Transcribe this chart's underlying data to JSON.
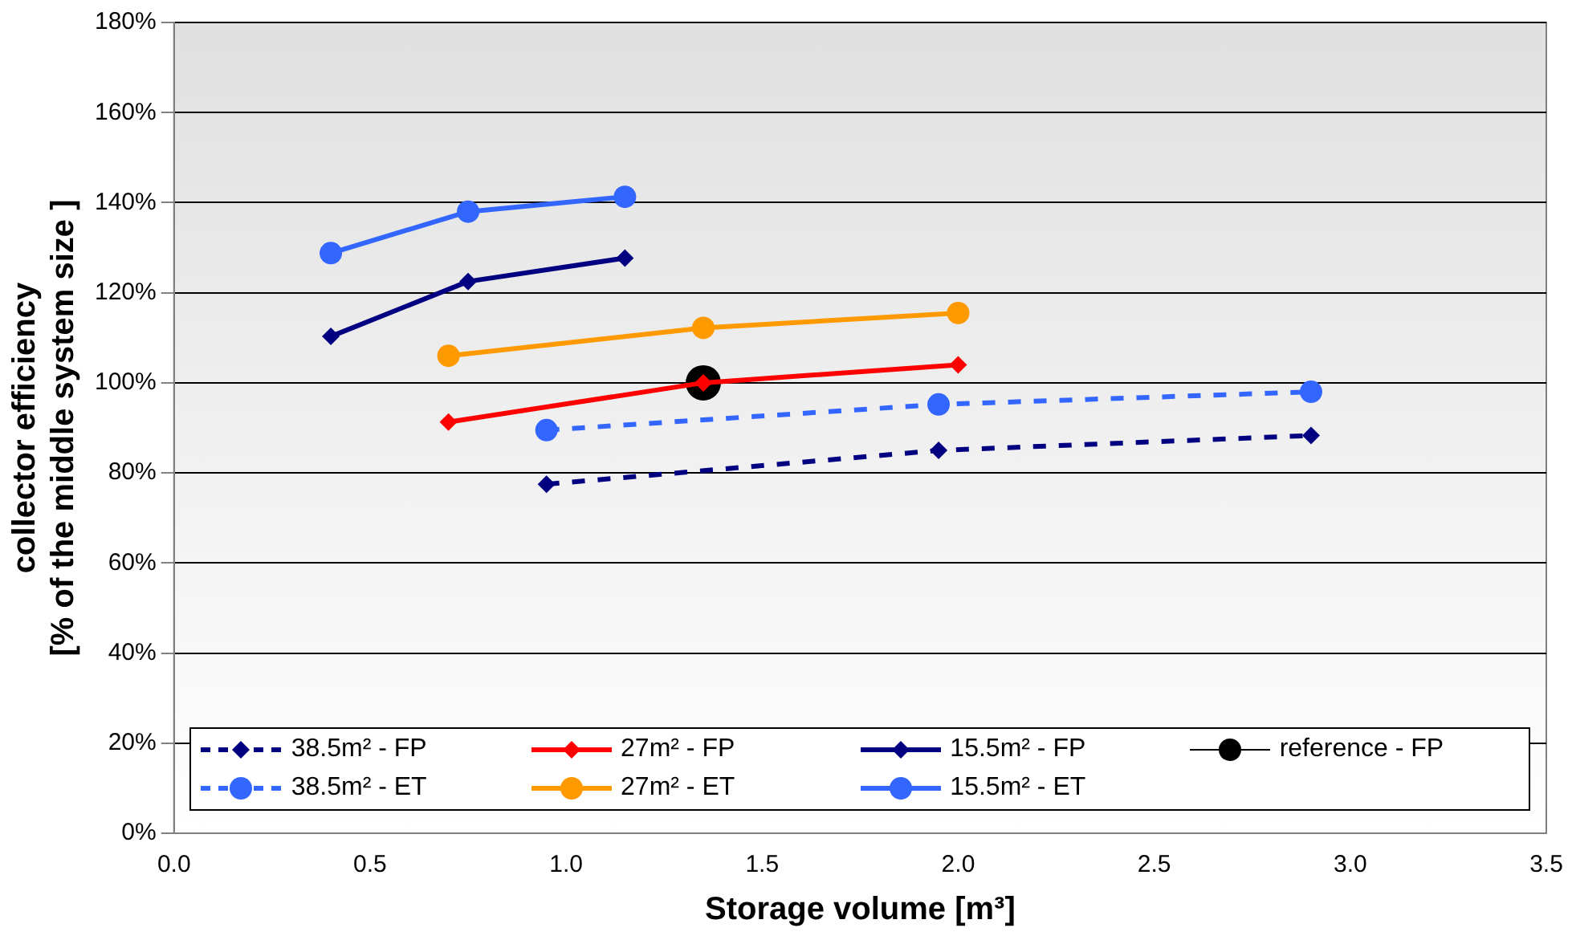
{
  "chart_data": {
    "type": "line",
    "xlabel": "Storage volume [m³]",
    "ylabel": "collector efficiency\n[% of the middle system size ]",
    "xlim": [
      0,
      3.5
    ],
    "xticks": [
      {
        "value": 0,
        "label": "0.0"
      },
      {
        "value": 0.5,
        "label": "0.5"
      },
      {
        "value": 1,
        "label": "1.0"
      },
      {
        "value": 1.5,
        "label": "1.5"
      },
      {
        "value": 2,
        "label": "2.0"
      },
      {
        "value": 2.5,
        "label": "2.5"
      },
      {
        "value": 3,
        "label": "3.0"
      },
      {
        "value": 3.5,
        "label": "3.5"
      }
    ],
    "ylim": [
      0,
      180
    ],
    "yticks": [
      {
        "value": 0,
        "label": "0%"
      },
      {
        "value": 20,
        "label": "20%"
      },
      {
        "value": 40,
        "label": "40%"
      },
      {
        "value": 60,
        "label": "60%"
      },
      {
        "value": 80,
        "label": "80%"
      },
      {
        "value": 100,
        "label": "100%"
      },
      {
        "value": 120,
        "label": "120%"
      },
      {
        "value": 140,
        "label": "140%"
      },
      {
        "value": 160,
        "label": "160%"
      },
      {
        "value": 180,
        "label": "180%"
      }
    ],
    "grid": "y",
    "legend": "bottom",
    "series": [
      {
        "name": "38.5m² - FP",
        "color": "#000080",
        "marker": "diamond",
        "line_style": "dashed",
        "x": [
          0.95,
          1.95,
          2.9
        ],
        "values": [
          77.5,
          85,
          88.3
        ]
      },
      {
        "name": "27m² - FP",
        "color": "#ff0000",
        "marker": "diamond",
        "line_style": "solid",
        "x": [
          0.7,
          1.35,
          2.0
        ],
        "values": [
          91.3,
          100,
          104
        ]
      },
      {
        "name": "15.5m² - FP",
        "color": "#000080",
        "marker": "diamond",
        "line_style": "solid",
        "x": [
          0.4,
          0.75,
          1.15
        ],
        "values": [
          110.3,
          122.5,
          127.7
        ]
      },
      {
        "name": "reference - FP",
        "color": "#000000",
        "marker": "circle",
        "line_style": "solid",
        "x": [
          1.35
        ],
        "values": [
          100
        ]
      },
      {
        "name": "38.5m² - ET",
        "color": "#3366ff",
        "marker": "circle",
        "line_style": "dashed",
        "x": [
          0.95,
          1.95,
          2.9
        ],
        "values": [
          89.5,
          95.2,
          98
        ]
      },
      {
        "name": "27m² - ET",
        "color": "#ff9900",
        "marker": "circle",
        "line_style": "solid",
        "x": [
          0.7,
          1.35,
          2.0
        ],
        "values": [
          106,
          112.2,
          115.5
        ]
      },
      {
        "name": "15.5m² - ET",
        "color": "#3366ff",
        "marker": "circle",
        "line_style": "solid",
        "x": [
          0.4,
          0.75,
          1.15
        ],
        "values": [
          128.8,
          138,
          141.3
        ]
      }
    ]
  }
}
